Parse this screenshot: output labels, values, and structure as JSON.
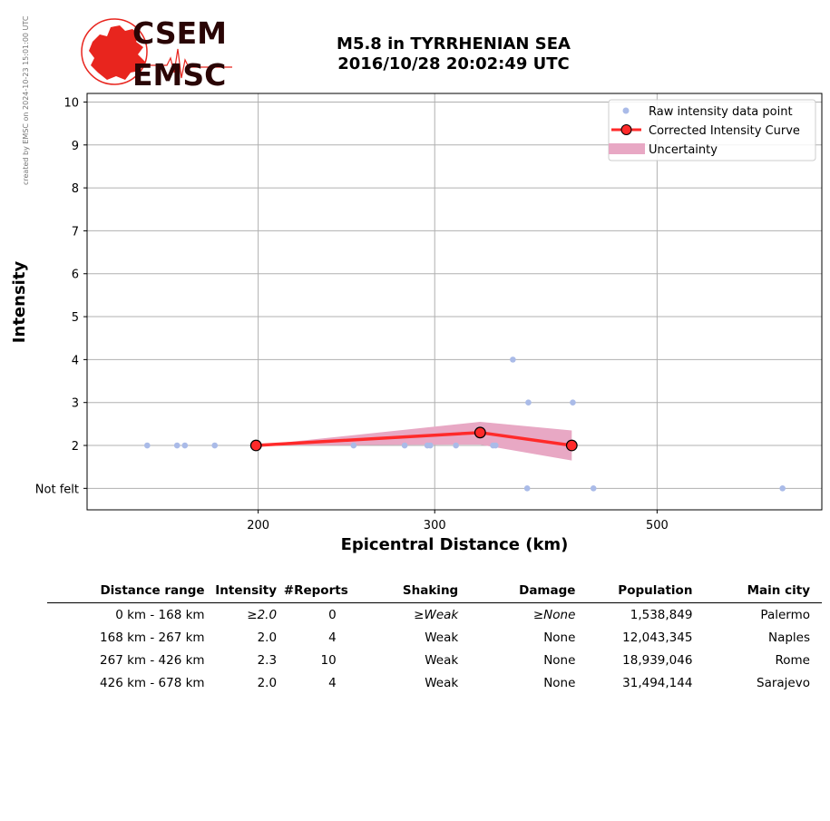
{
  "watermark": "created by EMSC on 2024-10-23 15:01:00 UTC",
  "logo": {
    "top_text": "CSEM",
    "bottom_text": "EMSC"
  },
  "header": {
    "line1": "M5.8 in TYRRHENIAN SEA",
    "line2": "2016/10/28 20:02:49 UTC"
  },
  "colors": {
    "raw_points": "#aabbe8",
    "curve": "#ff2a2a",
    "uncertainty": "#e8a8c4",
    "logo_red": "#e8251e",
    "logo_dark": "#2a0505"
  },
  "chart_data": {
    "type": "scatter",
    "x_scale": "log",
    "xlabel": "Epicentral Distance (km)",
    "ylabel": "Intensity",
    "xlim": [
      135,
      730
    ],
    "ylim": [
      0.5,
      10.2
    ],
    "xticks": [
      200,
      300,
      500
    ],
    "yticks": [
      {
        "value": 1,
        "label": "Not felt"
      },
      {
        "value": 2,
        "label": "2"
      },
      {
        "value": 3,
        "label": "3"
      },
      {
        "value": 4,
        "label": "4"
      },
      {
        "value": 5,
        "label": "5"
      },
      {
        "value": 6,
        "label": "6"
      },
      {
        "value": 7,
        "label": "7"
      },
      {
        "value": 8,
        "label": "8"
      },
      {
        "value": 9,
        "label": "9"
      },
      {
        "value": 10,
        "label": "10"
      }
    ],
    "grid": true,
    "legend_position": "top-right",
    "series": [
      {
        "name": "Raw intensity data point",
        "kind": "scatter",
        "points": [
          [
            155,
            2
          ],
          [
            166,
            2
          ],
          [
            169,
            2
          ],
          [
            181,
            2
          ],
          [
            249,
            2
          ],
          [
            280,
            2
          ],
          [
            295,
            2
          ],
          [
            297,
            2
          ],
          [
            315,
            2
          ],
          [
            343,
            2
          ],
          [
            345,
            2
          ],
          [
            359,
            4
          ],
          [
            372,
            3
          ],
          [
            371,
            1
          ],
          [
            412,
            3
          ],
          [
            432,
            1
          ],
          [
            667,
            1
          ]
        ]
      },
      {
        "name": "Corrected Intensity Curve",
        "kind": "line",
        "points": [
          [
            199,
            2.0
          ],
          [
            333,
            2.3
          ],
          [
            411,
            2.0
          ]
        ]
      },
      {
        "name": "Uncertainty",
        "kind": "band",
        "lower": [
          [
            199,
            2.0
          ],
          [
            333,
            2.02
          ],
          [
            411,
            1.65
          ]
        ],
        "upper": [
          [
            199,
            2.0
          ],
          [
            333,
            2.55
          ],
          [
            411,
            2.35
          ]
        ]
      }
    ]
  },
  "table": {
    "headers": [
      "Distance range",
      "Intensity",
      "#Reports",
      "Shaking",
      "Damage",
      "Population",
      "Main city"
    ],
    "rows": [
      {
        "range": "0 km -  168 km",
        "intensity": "≥2.0",
        "reports": "0",
        "shaking": "≥Weak",
        "damage": "≥None",
        "population": "1,538,849",
        "city": "Palermo",
        "italic": true
      },
      {
        "range": "168 km -  267 km",
        "intensity": "2.0",
        "reports": "4",
        "shaking": "Weak",
        "damage": "None",
        "population": "12,043,345",
        "city": "Naples",
        "italic": false
      },
      {
        "range": "267 km -  426 km",
        "intensity": "2.3",
        "reports": "10",
        "shaking": "Weak",
        "damage": "None",
        "population": "18,939,046",
        "city": "Rome",
        "italic": false
      },
      {
        "range": "426 km -  678 km",
        "intensity": "2.0",
        "reports": "4",
        "shaking": "Weak",
        "damage": "None",
        "population": "31,494,144",
        "city": "Sarajevo",
        "italic": false
      }
    ]
  }
}
